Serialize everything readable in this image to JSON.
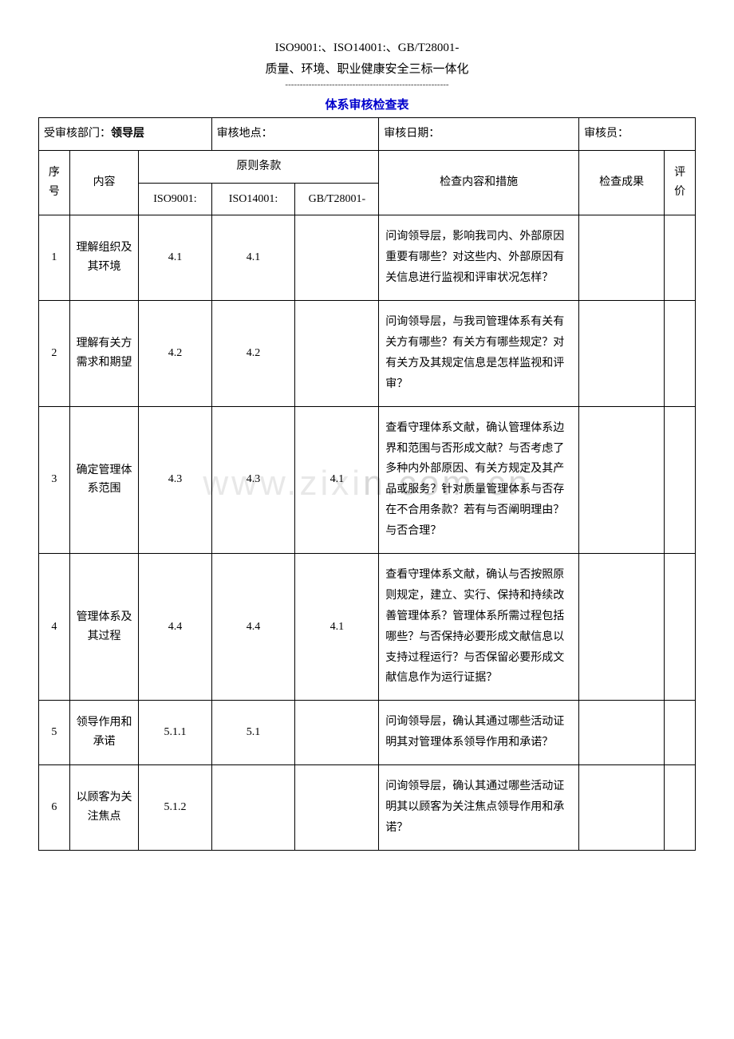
{
  "header": {
    "line1": "ISO9001:、ISO14001:、GB/T28001-",
    "line2": "质量、环境、职业健康安全三标一体化",
    "dashes": "--------------------------------------------------------"
  },
  "title": "体系审核检查表",
  "info": {
    "dept_label": "受审核部门：",
    "dept_value": "领导层",
    "location_label": "审核地点：",
    "date_label": "审核日期：",
    "auditor_label": "审核员："
  },
  "thead": {
    "seq": "序号",
    "content": "内容",
    "principle": "原则条款",
    "iso9001": "ISO9001:",
    "iso14001": "ISO14001:",
    "gbt28001": "GB/T28001-",
    "check": "检查内容和措施",
    "result": "检查成果",
    "eval": "评价"
  },
  "rows": [
    {
      "seq": "1",
      "content": "理解组织及其环境",
      "iso9001": "4.1",
      "iso14001": "4.1",
      "gbt": "",
      "check": "问询领导层，影响我司内、外部原因重要有哪些？对这些内、外部原因有关信息进行监视和评审状况怎样？"
    },
    {
      "seq": "2",
      "content": "理解有关方需求和期望",
      "iso9001": "4.2",
      "iso14001": "4.2",
      "gbt": "",
      "check": "问询领导层，与我司管理体系有关有关方有哪些？有关方有哪些规定？对有关方及其规定信息是怎样监视和评审？"
    },
    {
      "seq": "3",
      "content": "确定管理体系范围",
      "iso9001": "4.3",
      "iso14001": "4.3",
      "gbt": "4.1",
      "check": "查看守理体系文献，确认管理体系边界和范围与否形成文献？与否考虑了多种内外部原因、有关方规定及其产品或服务？针对质量管理体系与否存在不合用条款？若有与否阐明理由？与否合理？"
    },
    {
      "seq": "4",
      "content": "管理体系及其过程",
      "iso9001": "4.4",
      "iso14001": "4.4",
      "gbt": "4.1",
      "check": "查看守理体系文献，确认与否按照原则规定，建立、实行、保持和持续改善管理体系？管理体系所需过程包括哪些？与否保持必要形成文献信息以支持过程运行？与否保留必要形成文献信息作为运行证据？"
    },
    {
      "seq": "5",
      "content": "领导作用和承诺",
      "iso9001": "5.1.1",
      "iso14001": "5.1",
      "gbt": "",
      "check": "问询领导层，确认其通过哪些活动证明其对管理体系领导作用和承诺？"
    },
    {
      "seq": "6",
      "content": "以顾客为关注焦点",
      "iso9001": "5.1.2",
      "iso14001": "",
      "gbt": "",
      "check": "问询领导层，确认其通过哪些活动证明其以顾客为关注焦点领导作用和承诺？"
    }
  ],
  "watermark": "www.zixin.com.cn",
  "colors": {
    "title": "#0000cc",
    "border": "#000000",
    "text": "#000000",
    "background": "#ffffff",
    "watermark": "#e8e8e8"
  }
}
